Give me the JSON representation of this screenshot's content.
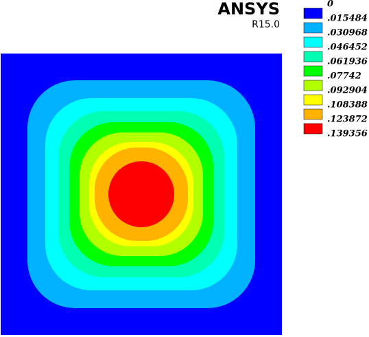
{
  "chart_data": {
    "type": "contour",
    "title": "ANSYS",
    "subtitle": "R15.0",
    "levels": [
      0,
      {
        "value": 0.015484,
        "label": ".015484"
      },
      {
        "value": 0.030968,
        "label": ".030968"
      },
      {
        "value": 0.046452,
        "label": ".046452"
      },
      {
        "value": 0.061936,
        "label": ".061936"
      },
      {
        "value": 0.07742,
        "label": ".07742"
      },
      {
        "value": 0.092904,
        "label": ".092904"
      },
      {
        "value": 0.108388,
        "label": ".108388"
      },
      {
        "value": 0.123872,
        "label": ".123872"
      },
      {
        "value": 0.139356,
        "label": ".139356"
      }
    ],
    "colors": [
      "#0000ff",
      "#00b2ff",
      "#00ffff",
      "#00ffb2",
      "#00ff00",
      "#b2ff00",
      "#ffff00",
      "#ffb200",
      "#ff0000"
    ]
  }
}
